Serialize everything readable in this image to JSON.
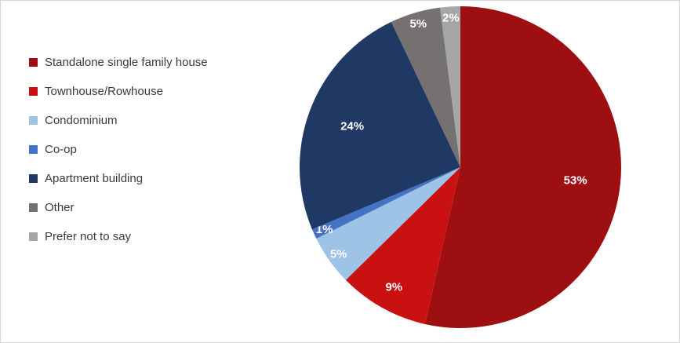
{
  "chart_data": {
    "type": "pie",
    "title": "",
    "legend_position": "left",
    "start_angle_deg": 0,
    "direction": "clockwise",
    "label_color": "#FFFFFF",
    "slices": [
      {
        "label": "Standalone single family house",
        "value": 53,
        "display": "53%",
        "color": "#9E0F12"
      },
      {
        "label": "Townhouse/Rowhouse",
        "value": 9,
        "display": "9%",
        "color": "#C91111"
      },
      {
        "label": "Condominium",
        "value": 5,
        "display": "5%",
        "color": "#9DC3E6"
      },
      {
        "label": "Co-op",
        "value": 1,
        "display": "1%",
        "color": "#4472C4"
      },
      {
        "label": "Apartment building",
        "value": 24,
        "display": "24%",
        "color": "#1F3864"
      },
      {
        "label": "Other",
        "value": 5,
        "display": "5%",
        "color": "#767171"
      },
      {
        "label": "Prefer not to say",
        "value": 2,
        "display": "2%",
        "color": "#A6A6A6"
      }
    ]
  }
}
